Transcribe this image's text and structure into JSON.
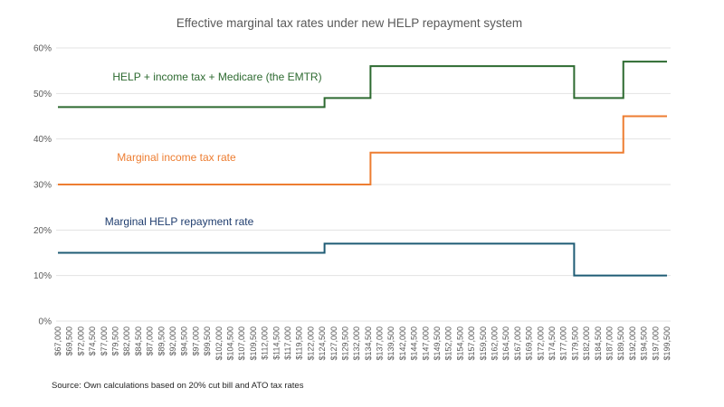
{
  "chart_data": {
    "type": "line",
    "subtype": "step",
    "title": "Effective marginal tax rates under new HELP repayment system",
    "source": "Source: Own calculations based on 20% cut bill and ATO tax rates",
    "grid": true,
    "legend_position": "labels-inside-plot",
    "colors": {
      "axis_text": "#595959",
      "title_text": "#595959",
      "gridline": "#e3e3e3",
      "source_text": "#262626"
    },
    "x_axis": {
      "label": "",
      "min": 67000,
      "max": 199500,
      "tick_interval": 2500,
      "tick_labels": [
        "$67,000",
        "$69,500",
        "$72,000",
        "$74,500",
        "$77,000",
        "$79,500",
        "$82,000",
        "$84,500",
        "$87,000",
        "$89,500",
        "$92,000",
        "$94,500",
        "$97,000",
        "$99,500",
        "$102,000",
        "$104,500",
        "$107,000",
        "$109,500",
        "$112,000",
        "$114,500",
        "$117,000",
        "$119,500",
        "$122,000",
        "$124,500",
        "$127,000",
        "$129,500",
        "$132,000",
        "$134,500",
        "$137,000",
        "$139,500",
        "$142,000",
        "$144,500",
        "$147,000",
        "$149,500",
        "$152,000",
        "$154,500",
        "$157,000",
        "$159,500",
        "$162,000",
        "$164,500",
        "$167,000",
        "$169,500",
        "$172,000",
        "$174,500",
        "$177,000",
        "$179,500",
        "$182,000",
        "$184,500",
        "$187,000",
        "$189,500",
        "$192,000",
        "$194,500",
        "$197,000",
        "$199,500"
      ]
    },
    "y_axis": {
      "label": "",
      "min": 0,
      "max": 60,
      "tick_interval": 10,
      "tick_labels": [
        "0%",
        "10%",
        "20%",
        "30%",
        "40%",
        "50%",
        "60%"
      ]
    },
    "series": [
      {
        "name": "Marginal HELP repayment rate",
        "color": "#1f5c75",
        "label_color": "#1f3d6e",
        "label_anchor": {
          "x": 198,
          "y": 249
        },
        "segments": [
          {
            "from_income": 67000,
            "to_income": 125000,
            "rate_pct": 15
          },
          {
            "from_income": 125000,
            "to_income": 179300,
            "rate_pct": 17
          },
          {
            "from_income": 179300,
            "to_income": 199500,
            "rate_pct": 10
          }
        ]
      },
      {
        "name": "Marginal income tax rate",
        "color": "#ed7d31",
        "label_color": "#ed7d31",
        "label_anchor": {
          "x": 195,
          "y": 178
        },
        "segments": [
          {
            "from_income": 67000,
            "to_income": 135000,
            "rate_pct": 30
          },
          {
            "from_income": 135000,
            "to_income": 190000,
            "rate_pct": 37
          },
          {
            "from_income": 190000,
            "to_income": 199500,
            "rate_pct": 45
          }
        ]
      },
      {
        "name": "HELP + income tax + Medicare (the EMTR)",
        "color": "#2d6a30",
        "label_color": "#2d6a30",
        "label_anchor": {
          "x": 240,
          "y": 89
        },
        "segments": [
          {
            "from_income": 67000,
            "to_income": 125000,
            "rate_pct": 47
          },
          {
            "from_income": 125000,
            "to_income": 135000,
            "rate_pct": 49
          },
          {
            "from_income": 135000,
            "to_income": 179300,
            "rate_pct": 56
          },
          {
            "from_income": 179300,
            "to_income": 190000,
            "rate_pct": 49
          },
          {
            "from_income": 190000,
            "to_income": 199500,
            "rate_pct": 57
          }
        ]
      }
    ]
  }
}
